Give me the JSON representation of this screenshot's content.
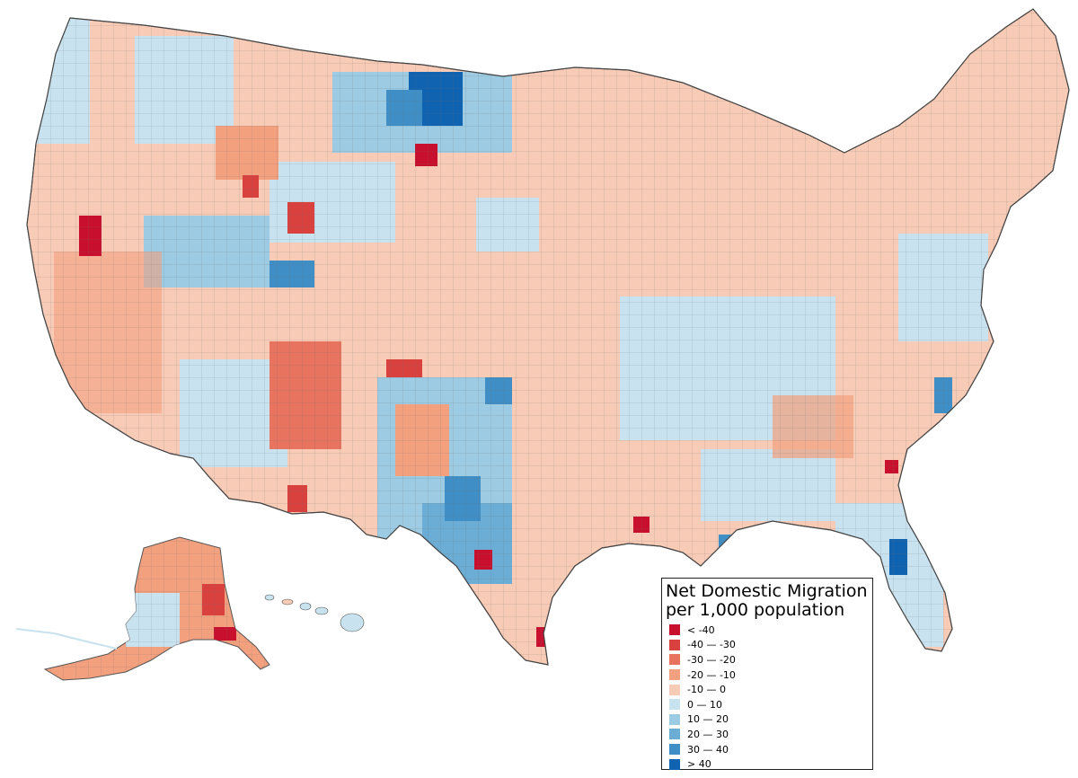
{
  "legend": {
    "title_line1": "Net Domestic Migration",
    "title_line2": "per 1,000 population",
    "items": [
      {
        "label": "< -40",
        "color": "#c8102e"
      },
      {
        "label": "-40 — -30",
        "color": "#d9413f"
      },
      {
        "label": "-30 — -20",
        "color": "#e8735e"
      },
      {
        "label": "-20 — -10",
        "color": "#f2a07e"
      },
      {
        "label": "-10 — 0",
        "color": "#f8cbb6"
      },
      {
        "label": "0 — 10",
        "color": "#c9e2ef"
      },
      {
        "label": "10 — 20",
        "color": "#9ccbe3"
      },
      {
        "label": "20 — 30",
        "color": "#6cadd6"
      },
      {
        "label": "30 — 40",
        "color": "#3f8fc6"
      },
      {
        "label": "> 40",
        "color": "#0f63b0"
      }
    ]
  },
  "map": {
    "boundary_color": "#555555",
    "notable_counties": [
      {
        "name": "outflow-county",
        "category": "< -40"
      },
      {
        "name": "inflow-county",
        "category": "> 40"
      }
    ]
  }
}
